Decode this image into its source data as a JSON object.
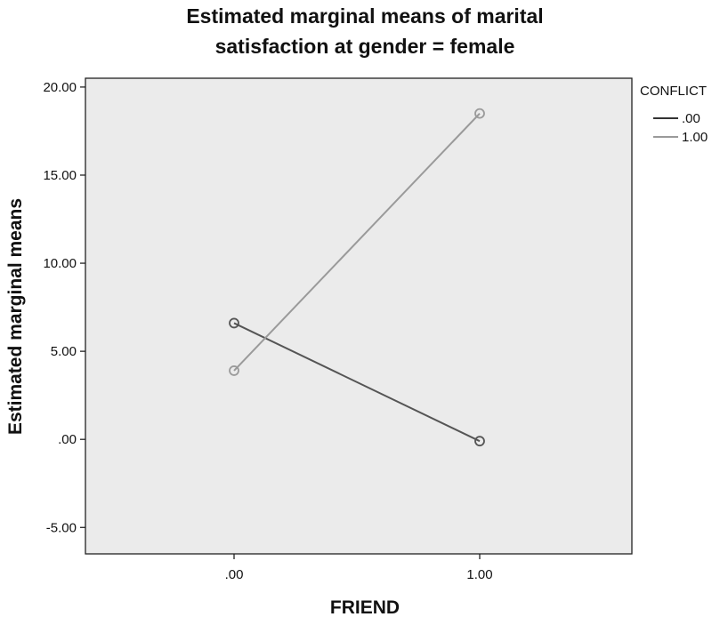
{
  "chart_data": {
    "type": "line",
    "title": [
      "Estimated marginal means of marital",
      "satisfaction at gender = female"
    ],
    "xlabel": "FRIEND",
    "ylabel": "Estimated marginal means",
    "categories": [
      ".00",
      "1.00"
    ],
    "ylim": [
      -6.5,
      20.5
    ],
    "yticks": [
      20,
      15,
      10,
      5,
      0,
      -5
    ],
    "yticklabels": [
      "20.00",
      "15.00",
      "10.00",
      "5.00",
      ".00",
      "-5.00"
    ],
    "grid": false,
    "legend": {
      "title": "CONFLICT",
      "placement": "right",
      "entries": [
        ".00",
        "1.00"
      ]
    },
    "series": [
      {
        "name": ".00",
        "values": [
          6.6,
          -0.1
        ],
        "color": "#555555"
      },
      {
        "name": "1.00",
        "values": [
          3.9,
          18.5
        ],
        "color": "#9a9a9a"
      }
    ],
    "plot_background": "#ebebeb"
  }
}
